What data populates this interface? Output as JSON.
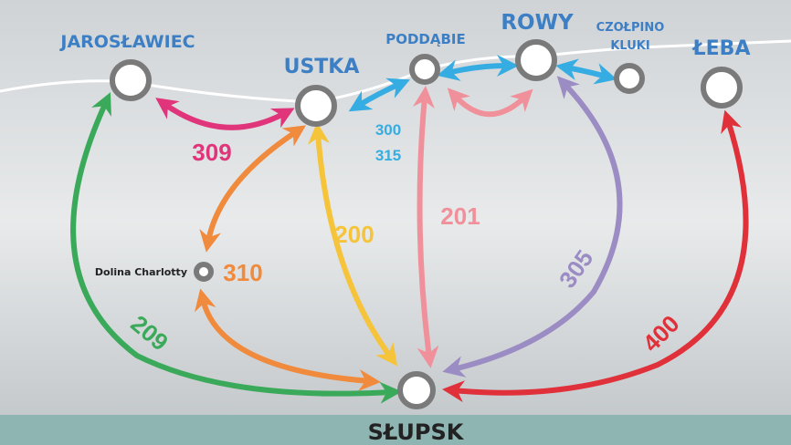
{
  "nodes": [
    {
      "label": "JAROSŁAWIEC"
    },
    {
      "label": "USTKA"
    },
    {
      "label": "PODDĄBIE"
    },
    {
      "label": "ROWY"
    },
    {
      "label": [
        "CZOŁPINO",
        "KLUKI"
      ]
    },
    {
      "label": "ŁEBA"
    },
    {
      "label": "Dolina Charlotty"
    },
    {
      "label": "SŁUPSK"
    }
  ],
  "routes": [
    {
      "label": "309"
    },
    {
      "label": "300"
    },
    {
      "label": "315"
    },
    {
      "label": "310"
    },
    {
      "label": "200"
    },
    {
      "label": "201"
    },
    {
      "label": "305"
    },
    {
      "label": "400"
    },
    {
      "label": "209"
    }
  ]
}
